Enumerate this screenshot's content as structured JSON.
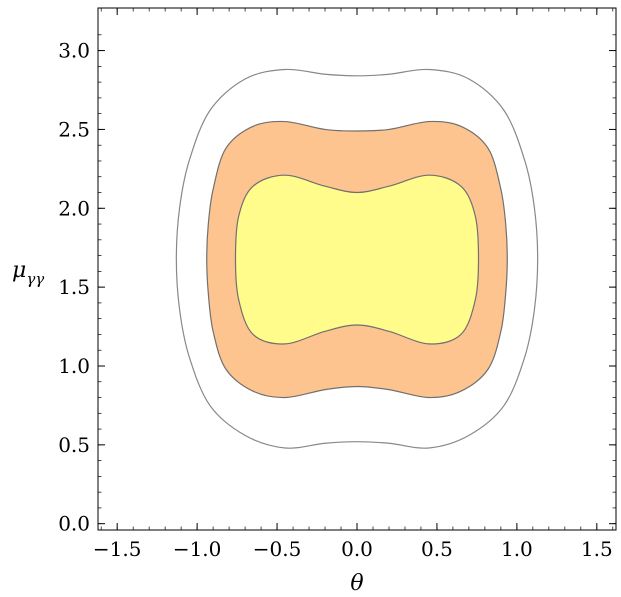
{
  "chart_data": {
    "type": "contour",
    "xlabel": "θ",
    "ylabel_main": "μ",
    "ylabel_sub": "γγ",
    "xlim": [
      -1.62,
      1.62
    ],
    "ylim": [
      -0.04,
      3.27
    ],
    "x_ticks": [
      {
        "value": -1.5,
        "label": "−1.5"
      },
      {
        "value": -1.0,
        "label": "−1.0"
      },
      {
        "value": -0.5,
        "label": "−0.5"
      },
      {
        "value": 0.0,
        "label": "0.0"
      },
      {
        "value": 0.5,
        "label": "0.5"
      },
      {
        "value": 1.0,
        "label": "1.0"
      },
      {
        "value": 1.5,
        "label": "1.5"
      }
    ],
    "y_ticks": [
      {
        "value": 0.0,
        "label": "0.0"
      },
      {
        "value": 0.5,
        "label": "0.5"
      },
      {
        "value": 1.0,
        "label": "1.0"
      },
      {
        "value": 1.5,
        "label": "1.5"
      },
      {
        "value": 2.0,
        "label": "2.0"
      },
      {
        "value": 2.5,
        "label": "2.5"
      },
      {
        "value": 3.0,
        "label": "3.0"
      }
    ],
    "regions": [
      {
        "fill": "none",
        "stroke": "#888888",
        "points": [
          [
            0.0,
            2.84
          ],
          [
            0.2,
            2.85
          ],
          [
            0.45,
            2.88
          ],
          [
            0.7,
            2.82
          ],
          [
            0.92,
            2.62
          ],
          [
            1.05,
            2.3
          ],
          [
            1.11,
            2.0
          ],
          [
            1.13,
            1.68
          ],
          [
            1.11,
            1.36
          ],
          [
            1.05,
            1.06
          ],
          [
            0.92,
            0.75
          ],
          [
            0.7,
            0.56
          ],
          [
            0.45,
            0.48
          ],
          [
            0.2,
            0.51
          ],
          [
            0.0,
            0.52
          ],
          [
            -0.2,
            0.51
          ],
          [
            -0.45,
            0.48
          ],
          [
            -0.7,
            0.56
          ],
          [
            -0.92,
            0.75
          ],
          [
            -1.05,
            1.06
          ],
          [
            -1.11,
            1.36
          ],
          [
            -1.13,
            1.68
          ],
          [
            -1.11,
            2.0
          ],
          [
            -1.05,
            2.3
          ],
          [
            -0.92,
            2.62
          ],
          [
            -0.7,
            2.82
          ],
          [
            -0.45,
            2.88
          ],
          [
            -0.2,
            2.85
          ]
        ]
      },
      {
        "fill": "#fdc48f",
        "stroke": "#707070",
        "points": [
          [
            0.0,
            2.49
          ],
          [
            0.2,
            2.5
          ],
          [
            0.45,
            2.55
          ],
          [
            0.65,
            2.52
          ],
          [
            0.82,
            2.38
          ],
          [
            0.9,
            2.12
          ],
          [
            0.93,
            1.9
          ],
          [
            0.94,
            1.68
          ],
          [
            0.93,
            1.46
          ],
          [
            0.9,
            1.22
          ],
          [
            0.82,
            0.98
          ],
          [
            0.65,
            0.84
          ],
          [
            0.45,
            0.8
          ],
          [
            0.2,
            0.85
          ],
          [
            0.0,
            0.87
          ],
          [
            -0.2,
            0.85
          ],
          [
            -0.45,
            0.8
          ],
          [
            -0.65,
            0.84
          ],
          [
            -0.82,
            0.98
          ],
          [
            -0.9,
            1.22
          ],
          [
            -0.93,
            1.46
          ],
          [
            -0.94,
            1.68
          ],
          [
            -0.93,
            1.9
          ],
          [
            -0.9,
            2.12
          ],
          [
            -0.82,
            2.38
          ],
          [
            -0.65,
            2.52
          ],
          [
            -0.45,
            2.55
          ],
          [
            -0.2,
            2.5
          ]
        ]
      },
      {
        "fill": "#fffc8c",
        "stroke": "#707070",
        "points": [
          [
            0.0,
            2.1
          ],
          [
            0.2,
            2.14
          ],
          [
            0.45,
            2.21
          ],
          [
            0.65,
            2.14
          ],
          [
            0.74,
            1.95
          ],
          [
            0.76,
            1.68
          ],
          [
            0.74,
            1.42
          ],
          [
            0.65,
            1.2
          ],
          [
            0.45,
            1.14
          ],
          [
            0.2,
            1.22
          ],
          [
            0.0,
            1.26
          ],
          [
            -0.2,
            1.22
          ],
          [
            -0.45,
            1.14
          ],
          [
            -0.65,
            1.2
          ],
          [
            -0.74,
            1.42
          ],
          [
            -0.76,
            1.68
          ],
          [
            -0.74,
            1.95
          ],
          [
            -0.65,
            2.14
          ],
          [
            -0.45,
            2.21
          ],
          [
            -0.2,
            2.14
          ]
        ]
      }
    ]
  }
}
